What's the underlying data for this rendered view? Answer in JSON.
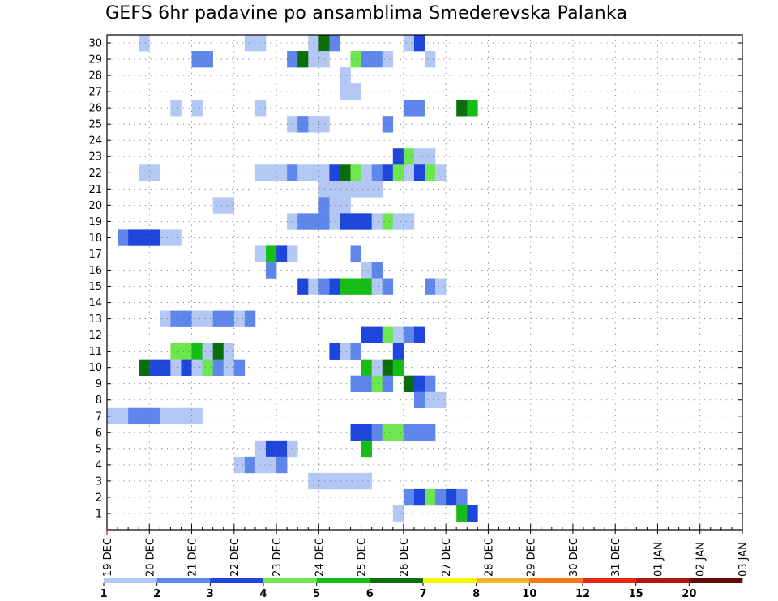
{
  "chart_data": {
    "type": "heatmap",
    "title": "GEFS 6hr padavine po ansamblima Smederevska Palanka",
    "y_categories": [
      "1",
      "2",
      "3",
      "4",
      "5",
      "6",
      "7",
      "8",
      "9",
      "10",
      "11",
      "12",
      "13",
      "14",
      "15",
      "16",
      "17",
      "18",
      "19",
      "20",
      "21",
      "22",
      "23",
      "24",
      "25",
      "26",
      "27",
      "28",
      "29",
      "30"
    ],
    "x_tick_labels": [
      "19 DEC",
      "20 DEC",
      "21 DEC",
      "22 DEC",
      "23 DEC",
      "24 DEC",
      "25 DEC",
      "26 DEC",
      "27 DEC",
      "28 DEC",
      "29 DEC",
      "30 DEC",
      "31 DEC",
      "01 JAN",
      "02 JAN",
      "03 JAN"
    ],
    "x_unit": "6-hour step from 19 DEC 00Z",
    "grid": true,
    "color_levels": [
      1,
      2,
      3,
      4,
      5,
      6,
      7,
      8,
      10,
      12,
      15,
      20
    ],
    "level_labels": [
      "1",
      "2",
      "3",
      "4",
      "5",
      "6",
      "7",
      "8",
      "10",
      "12",
      "15",
      "20"
    ],
    "level_colors": [
      "#b4c8f5",
      "#5f87eb",
      "#1e46dc",
      "#6ee650",
      "#14be14",
      "#0a6e0a",
      "#f5f500",
      "#f5b432",
      "#f57814",
      "#e62814",
      "#b41414",
      "#640a0a"
    ],
    "cells": [
      [
        3,
        30,
        0
      ],
      [
        13,
        30,
        0
      ],
      [
        14,
        30,
        0
      ],
      [
        19,
        30,
        0
      ],
      [
        20,
        30,
        5
      ],
      [
        21,
        30,
        1
      ],
      [
        28,
        30,
        0
      ],
      [
        29,
        30,
        2
      ],
      [
        8,
        29,
        1
      ],
      [
        9,
        29,
        1
      ],
      [
        23,
        29,
        3
      ],
      [
        24,
        29,
        1
      ],
      [
        17,
        29,
        1
      ],
      [
        18,
        29,
        5
      ],
      [
        19,
        29,
        0
      ],
      [
        20,
        29,
        0
      ],
      [
        25,
        29,
        1
      ],
      [
        26,
        29,
        0
      ],
      [
        30,
        29,
        0
      ],
      [
        22,
        28,
        0
      ],
      [
        22,
        27,
        0
      ],
      [
        23,
        27,
        0
      ],
      [
        6,
        26,
        0
      ],
      [
        8,
        26,
        0
      ],
      [
        14,
        26,
        0
      ],
      [
        28,
        26,
        1
      ],
      [
        29,
        26,
        1
      ],
      [
        33,
        26,
        5
      ],
      [
        34,
        26,
        4
      ],
      [
        17,
        25,
        0
      ],
      [
        18,
        25,
        1
      ],
      [
        19,
        25,
        0
      ],
      [
        20,
        25,
        0
      ],
      [
        26,
        25,
        1
      ],
      [
        27,
        23,
        2
      ],
      [
        28,
        23,
        3
      ],
      [
        29,
        23,
        0
      ],
      [
        30,
        23,
        0
      ],
      [
        3,
        22,
        0
      ],
      [
        4,
        22,
        0
      ],
      [
        14,
        22,
        0
      ],
      [
        15,
        22,
        0
      ],
      [
        16,
        22,
        0
      ],
      [
        17,
        22,
        1
      ],
      [
        18,
        22,
        0
      ],
      [
        19,
        22,
        0
      ],
      [
        20,
        22,
        0
      ],
      [
        21,
        22,
        2
      ],
      [
        22,
        22,
        5
      ],
      [
        23,
        22,
        3
      ],
      [
        24,
        22,
        0
      ],
      [
        25,
        22,
        1
      ],
      [
        26,
        22,
        2
      ],
      [
        27,
        22,
        3
      ],
      [
        28,
        22,
        0
      ],
      [
        29,
        22,
        2
      ],
      [
        30,
        22,
        3
      ],
      [
        31,
        22,
        0
      ],
      [
        20,
        21,
        0
      ],
      [
        21,
        21,
        0
      ],
      [
        22,
        21,
        0
      ],
      [
        23,
        21,
        0
      ],
      [
        24,
        21,
        0
      ],
      [
        25,
        21,
        0
      ],
      [
        10,
        20,
        0
      ],
      [
        11,
        20,
        0
      ],
      [
        20,
        20,
        1
      ],
      [
        21,
        20,
        0
      ],
      [
        22,
        20,
        0
      ],
      [
        17,
        19,
        0
      ],
      [
        18,
        19,
        1
      ],
      [
        19,
        19,
        1
      ],
      [
        20,
        19,
        1
      ],
      [
        21,
        19,
        0
      ],
      [
        22,
        19,
        2
      ],
      [
        23,
        19,
        2
      ],
      [
        24,
        19,
        2
      ],
      [
        25,
        19,
        0
      ],
      [
        26,
        19,
        3
      ],
      [
        27,
        19,
        0
      ],
      [
        28,
        19,
        0
      ],
      [
        1,
        18,
        1
      ],
      [
        2,
        18,
        2
      ],
      [
        3,
        18,
        2
      ],
      [
        4,
        18,
        2
      ],
      [
        5,
        18,
        0
      ],
      [
        6,
        18,
        0
      ],
      [
        14,
        17,
        0
      ],
      [
        15,
        17,
        4
      ],
      [
        16,
        17,
        2
      ],
      [
        17,
        17,
        0
      ],
      [
        23,
        17,
        1
      ],
      [
        15,
        16,
        1
      ],
      [
        24,
        16,
        0
      ],
      [
        25,
        16,
        1
      ],
      [
        18,
        15,
        2
      ],
      [
        19,
        15,
        0
      ],
      [
        20,
        15,
        1
      ],
      [
        21,
        15,
        2
      ],
      [
        22,
        15,
        4
      ],
      [
        23,
        15,
        4
      ],
      [
        24,
        15,
        4
      ],
      [
        25,
        15,
        0
      ],
      [
        26,
        15,
        1
      ],
      [
        30,
        15,
        1
      ],
      [
        31,
        15,
        0
      ],
      [
        5,
        13,
        0
      ],
      [
        6,
        13,
        1
      ],
      [
        7,
        13,
        1
      ],
      [
        8,
        13,
        0
      ],
      [
        9,
        13,
        0
      ],
      [
        10,
        13,
        1
      ],
      [
        11,
        13,
        1
      ],
      [
        12,
        13,
        0
      ],
      [
        13,
        13,
        1
      ],
      [
        24,
        12,
        2
      ],
      [
        25,
        12,
        2
      ],
      [
        26,
        12,
        3
      ],
      [
        27,
        12,
        0
      ],
      [
        28,
        12,
        1
      ],
      [
        29,
        12,
        2
      ],
      [
        6,
        11,
        3
      ],
      [
        7,
        11,
        3
      ],
      [
        8,
        11,
        4
      ],
      [
        9,
        11,
        0
      ],
      [
        10,
        11,
        5
      ],
      [
        11,
        11,
        0
      ],
      [
        21,
        11,
        2
      ],
      [
        22,
        11,
        0
      ],
      [
        23,
        11,
        1
      ],
      [
        27,
        11,
        2
      ],
      [
        3,
        10,
        5
      ],
      [
        4,
        10,
        2
      ],
      [
        5,
        10,
        2
      ],
      [
        6,
        10,
        0
      ],
      [
        7,
        10,
        2
      ],
      [
        8,
        10,
        0
      ],
      [
        9,
        10,
        3
      ],
      [
        10,
        10,
        1
      ],
      [
        11,
        10,
        0
      ],
      [
        12,
        10,
        1
      ],
      [
        24,
        10,
        4
      ],
      [
        25,
        10,
        0
      ],
      [
        26,
        10,
        5
      ],
      [
        27,
        10,
        4
      ],
      [
        23,
        9,
        1
      ],
      [
        24,
        9,
        1
      ],
      [
        25,
        9,
        3
      ],
      [
        26,
        9,
        1
      ],
      [
        28,
        9,
        5
      ],
      [
        29,
        9,
        2
      ],
      [
        30,
        9,
        1
      ],
      [
        29,
        8,
        1
      ],
      [
        30,
        8,
        0
      ],
      [
        31,
        8,
        0
      ],
      [
        0,
        7,
        0
      ],
      [
        1,
        7,
        0
      ],
      [
        2,
        7,
        1
      ],
      [
        3,
        7,
        1
      ],
      [
        4,
        7,
        1
      ],
      [
        5,
        7,
        0
      ],
      [
        6,
        7,
        0
      ],
      [
        7,
        7,
        0
      ],
      [
        8,
        7,
        0
      ],
      [
        23,
        6,
        2
      ],
      [
        24,
        6,
        2
      ],
      [
        25,
        6,
        1
      ],
      [
        26,
        6,
        3
      ],
      [
        27,
        6,
        3
      ],
      [
        28,
        6,
        1
      ],
      [
        29,
        6,
        1
      ],
      [
        30,
        6,
        1
      ],
      [
        14,
        5,
        0
      ],
      [
        15,
        5,
        2
      ],
      [
        16,
        5,
        2
      ],
      [
        17,
        5,
        0
      ],
      [
        24,
        5,
        4
      ],
      [
        12,
        4,
        0
      ],
      [
        13,
        4,
        1
      ],
      [
        14,
        4,
        0
      ],
      [
        15,
        4,
        0
      ],
      [
        16,
        4,
        1
      ],
      [
        19,
        3,
        0
      ],
      [
        20,
        3,
        0
      ],
      [
        21,
        3,
        0
      ],
      [
        22,
        3,
        0
      ],
      [
        23,
        3,
        0
      ],
      [
        24,
        3,
        0
      ],
      [
        28,
        2,
        1
      ],
      [
        29,
        2,
        2
      ],
      [
        30,
        2,
        3
      ],
      [
        31,
        2,
        1
      ],
      [
        32,
        2,
        2
      ],
      [
        33,
        2,
        1
      ],
      [
        27,
        1,
        0
      ],
      [
        33,
        1,
        4
      ],
      [
        34,
        1,
        2
      ]
    ]
  }
}
